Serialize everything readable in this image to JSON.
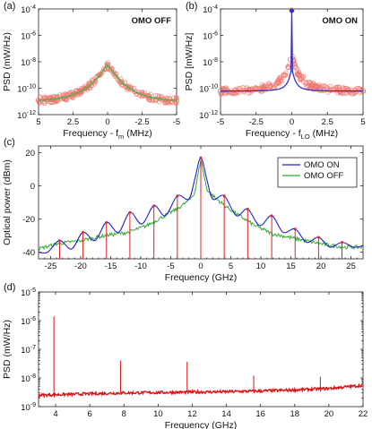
{
  "chart_data": [
    {
      "type": "scatter",
      "panel_label": "(a)",
      "annotation": "OMO OFF",
      "xlabel": "Frequency - f",
      "xlabel_sub": "m",
      "xlabel_suffix": " (MHz)",
      "ylabel": "PSD (mW/Hz)",
      "xlim": [
        5,
        -5
      ],
      "ylim_exp": [
        -12,
        -4
      ],
      "log_y": true,
      "x_ticks": [
        "5",
        "2.5",
        "0",
        "-2.5",
        "-5"
      ],
      "x_tick_values": [
        5,
        2.5,
        0,
        -2.5,
        -5
      ],
      "y_ticks_exp": [
        -12,
        -10,
        -8,
        -6,
        -4
      ],
      "series": [
        {
          "role": "measured",
          "color": "#f07870",
          "marker": "open-circle",
          "x": [
            -5,
            -4,
            -3,
            -2.5,
            -2,
            -1.5,
            -1,
            -0.5,
            -0.25,
            0,
            0.25,
            0.5,
            1,
            1.5,
            2,
            2.5,
            3,
            4,
            5
          ],
          "y": [
            1.2e-11,
            1.4e-11,
            2.2e-11,
            3.2e-11,
            5.5e-11,
            1.1e-10,
            3e-10,
            1.2e-09,
            2.8e-09,
            6e-09,
            2.8e-09,
            1.2e-09,
            3e-10,
            1.1e-10,
            5.5e-11,
            3.2e-11,
            2.2e-11,
            1.4e-11,
            1.2e-11
          ]
        },
        {
          "role": "fit",
          "color": "#6aa84f",
          "marker": "line",
          "x": [
            -5,
            -4,
            -3,
            -2.5,
            -2,
            -1.5,
            -1,
            -0.5,
            -0.25,
            0,
            0.25,
            0.5,
            1,
            1.5,
            2,
            2.5,
            3,
            4,
            5
          ],
          "y": [
            1.2e-11,
            1.4e-11,
            2.2e-11,
            3.2e-11,
            5.5e-11,
            1.1e-10,
            3e-10,
            1.2e-09,
            2.8e-09,
            6e-09,
            2.8e-09,
            1.2e-09,
            3e-10,
            1.1e-10,
            5.5e-11,
            3.2e-11,
            2.2e-11,
            1.4e-11,
            1.2e-11
          ]
        }
      ]
    },
    {
      "type": "scatter",
      "panel_label": "(b)",
      "annotation": "OMO ON",
      "xlabel": "Frequency - f",
      "xlabel_sub": "LO",
      "xlabel_suffix": " (MHz)",
      "ylabel": "PSD [mW/Hz]",
      "xlim": [
        -5,
        5
      ],
      "ylim_exp": [
        -12,
        -4
      ],
      "log_y": true,
      "x_ticks": [
        "-5",
        "-2.5",
        "0",
        "2.5",
        "5"
      ],
      "x_tick_values": [
        -5,
        -2.5,
        0,
        2.5,
        5
      ],
      "y_ticks_exp": [
        -12,
        -10,
        -8,
        -6,
        -4
      ],
      "series": [
        {
          "role": "measured",
          "color": "#f07870",
          "marker": "open-circle",
          "x": [
            -5,
            -4,
            -3,
            -2,
            -1.5,
            -1,
            -0.5,
            -0.25,
            -0.1,
            0,
            0.1,
            0.25,
            0.5,
            1,
            1.5,
            2,
            3,
            4,
            5
          ],
          "y": [
            6e-11,
            6.5e-11,
            7.5e-11,
            1e-10,
            1.4e-10,
            2.5e-10,
            1e-09,
            4e-09,
            1.5e-08,
            0.0001,
            1.5e-08,
            4e-09,
            1e-09,
            2.5e-10,
            1.4e-10,
            1e-10,
            7.5e-11,
            6.5e-11,
            6e-11
          ]
        },
        {
          "role": "fit",
          "color": "#3333bb",
          "marker": "line",
          "x": [
            -5,
            -4,
            -3,
            -2,
            -1.5,
            -1,
            -0.5,
            -0.25,
            -0.1,
            0,
            0.1,
            0.25,
            0.5,
            1,
            1.5,
            2,
            3,
            4,
            5
          ],
          "y": [
            6e-11,
            6.5e-11,
            7.5e-11,
            1e-10,
            1.4e-10,
            2.5e-10,
            1e-09,
            4e-09,
            1.5e-08,
            0.0001,
            1.5e-08,
            4e-09,
            1e-09,
            2.5e-10,
            1.4e-10,
            1e-10,
            7.5e-11,
            6.5e-11,
            6e-11
          ]
        }
      ]
    },
    {
      "type": "line",
      "panel_label": "(c)",
      "xlabel": "Frequency (GHz)",
      "ylabel": "Optical power (dBm)",
      "xlim": [
        -27,
        27
      ],
      "ylim": [
        -44,
        24
      ],
      "x_ticks": [
        "-25",
        "-20",
        "-15",
        "-10",
        "-5",
        "0",
        "5",
        "10",
        "15",
        "20",
        "25"
      ],
      "x_tick_values": [
        -25,
        -20,
        -15,
        -10,
        -5,
        0,
        5,
        10,
        15,
        20,
        25
      ],
      "y_ticks": [
        "-40",
        "-20",
        "0",
        "20"
      ],
      "y_tick_values": [
        -40,
        -20,
        0,
        20
      ],
      "legend_position": "top-right",
      "series": [
        {
          "name": "OMO ON",
          "color": "#2222cc",
          "x": [
            -27,
            -25.5,
            -23.5,
            -21.5,
            -19.6,
            -17.6,
            -15.7,
            -13.7,
            -11.8,
            -9.8,
            -7.8,
            -5.9,
            -3.9,
            -2,
            -1,
            0,
            1,
            2,
            3.9,
            5.9,
            7.8,
            9.8,
            11.8,
            13.7,
            15.7,
            17.6,
            19.6,
            21.5,
            23.5,
            25.5,
            27
          ],
          "y": [
            -40,
            -40,
            -33,
            -38,
            -28,
            -33,
            -22,
            -28,
            -16,
            -23,
            -12,
            -18,
            -6,
            -8,
            4,
            17,
            4,
            -8,
            -6,
            -18,
            -14,
            -24,
            -18,
            -28,
            -26,
            -34,
            -31,
            -37,
            -34,
            -37,
            -36
          ]
        },
        {
          "name": "OMO OFF",
          "color": "#33aa33",
          "x": [
            -27,
            -24,
            -20,
            -16,
            -12,
            -9,
            -6,
            -4,
            -2,
            -1,
            0,
            1,
            2,
            4,
            6,
            9,
            12,
            16,
            20,
            24,
            27
          ],
          "y": [
            -38,
            -35,
            -33,
            -30,
            -28,
            -24,
            -18,
            -14,
            -9,
            -4,
            16,
            -2,
            -6,
            -12,
            -17,
            -24,
            -29,
            -32,
            -35,
            -37,
            -37
          ]
        }
      ],
      "sidebands": {
        "color": "#e02020",
        "x": [
          -23.5,
          -19.6,
          -15.7,
          -11.8,
          -7.8,
          -3.9,
          0,
          3.9,
          7.8,
          11.8,
          15.7,
          19.6,
          23.5
        ],
        "y": [
          -33,
          -28,
          -22,
          -16,
          -12,
          -6,
          17,
          -6,
          -14,
          -18,
          -26,
          -31,
          -34
        ]
      }
    },
    {
      "type": "line",
      "panel_label": "(d)",
      "xlabel": "Frequency (GHz)",
      "ylabel": "PSD (mW/Hz)",
      "xlim": [
        3,
        22
      ],
      "ylim_exp": [
        -9,
        -5
      ],
      "log_y": true,
      "x_ticks": [
        "4",
        "6",
        "8",
        "10",
        "12",
        "14",
        "16",
        "18",
        "20",
        "22"
      ],
      "x_tick_values": [
        4,
        6,
        8,
        10,
        12,
        14,
        16,
        18,
        20,
        22
      ],
      "y_ticks_exp": [
        -9,
        -8,
        -7,
        -6,
        -5
      ],
      "series": [
        {
          "color": "#dd1111",
          "x": [
            3,
            4,
            6,
            8,
            10,
            12,
            14,
            16,
            18,
            20,
            22
          ],
          "y": [
            2.5e-09,
            2.6e-09,
            2.8e-09,
            3e-09,
            3.1e-09,
            3.2e-09,
            3.3e-09,
            3.5e-09,
            3.8e-09,
            4.3e-09,
            5.5e-09
          ]
        }
      ],
      "peaks": {
        "x": [
          3.9,
          7.8,
          11.7,
          15.6,
          19.5
        ],
        "y": [
          1.4e-06,
          4e-08,
          3.7e-08,
          1.2e-08,
          1.1e-08
        ]
      }
    }
  ]
}
